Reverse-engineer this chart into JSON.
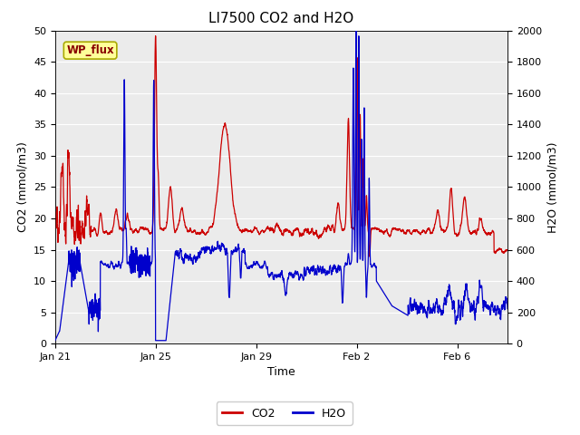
{
  "title": "LI7500 CO2 and H2O",
  "xlabel": "Time",
  "ylabel_left": "CO2 (mmol/m3)",
  "ylabel_right": "H2O (mmol/m3)",
  "ylim_left": [
    0,
    50
  ],
  "ylim_right": [
    0,
    2000
  ],
  "yticks_left": [
    0,
    5,
    10,
    15,
    20,
    25,
    30,
    35,
    40,
    45,
    50
  ],
  "yticks_right": [
    0,
    200,
    400,
    600,
    800,
    1000,
    1200,
    1400,
    1600,
    1800,
    2000
  ],
  "xtick_labels": [
    "Jan 21",
    "Jan 25",
    "Jan 29",
    "Feb 2",
    "Feb 6"
  ],
  "xtick_positions": [
    0,
    4,
    8,
    12,
    16
  ],
  "xlim": [
    0,
    18
  ],
  "co2_color": "#cc0000",
  "h2o_color": "#0000cc",
  "figure_facecolor": "#ffffff",
  "plot_facecolor": "#ebebeb",
  "grid_color": "#ffffff",
  "wp_flux_label": "WP_flux",
  "wp_flux_facecolor": "#ffff99",
  "wp_flux_edgecolor": "#aaaa00",
  "wp_flux_textcolor": "#880000",
  "legend_co2": "CO2",
  "legend_h2o": "H2O",
  "title_fontsize": 11,
  "axis_label_fontsize": 9,
  "tick_fontsize": 8,
  "legend_fontsize": 9,
  "linewidth": 0.9
}
